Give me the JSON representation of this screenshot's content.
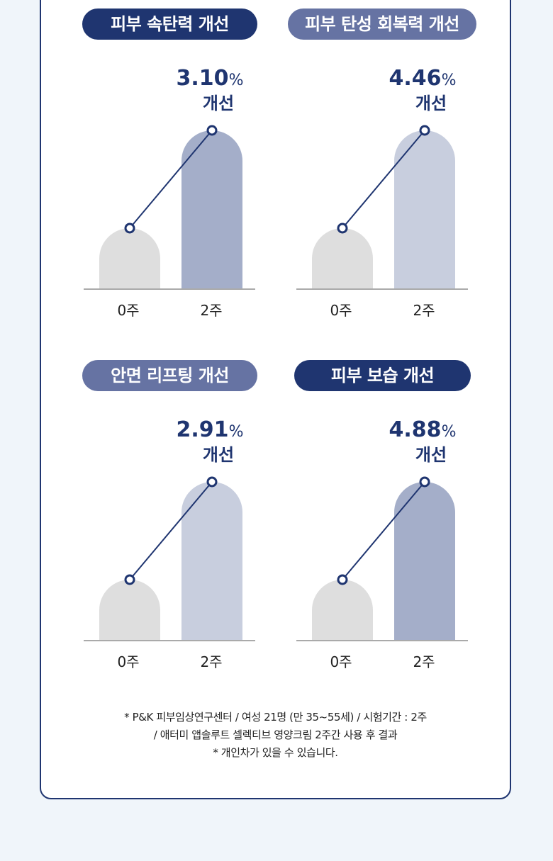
{
  "colors": {
    "page_bg": "#f0f5fa",
    "card_border": "#1f3570",
    "navy": "#1f3570",
    "slate": "#6673a3",
    "bar_base": "#dedede",
    "bar_dark": "#a4aec9",
    "bar_light": "#c8cede",
    "axis": "#aaaaaa"
  },
  "chart_data": [
    {
      "type": "bar",
      "title": "피부 속탄력 개선",
      "title_color": "#1f3570",
      "categories": [
        "0주",
        "2주"
      ],
      "values": [
        1.0,
        3.1
      ],
      "bar_colors": [
        "#dedede",
        "#a4aec9"
      ],
      "annotation": {
        "value": "3.10",
        "unit": "%",
        "text": "개선"
      }
    },
    {
      "type": "bar",
      "title": "피부 탄성 회복력 개선",
      "title_color": "#6673a3",
      "categories": [
        "0주",
        "2주"
      ],
      "values": [
        1.0,
        4.46
      ],
      "bar_colors": [
        "#dedede",
        "#c8cede"
      ],
      "annotation": {
        "value": "4.46",
        "unit": "%",
        "text": "개선"
      }
    },
    {
      "type": "bar",
      "title": "안면 리프팅 개선",
      "title_color": "#6673a3",
      "categories": [
        "0주",
        "2주"
      ],
      "values": [
        1.0,
        2.91
      ],
      "bar_colors": [
        "#dedede",
        "#c8cede"
      ],
      "annotation": {
        "value": "2.91",
        "unit": "%",
        "text": "개선"
      }
    },
    {
      "type": "bar",
      "title": "피부 보습 개선",
      "title_color": "#1f3570",
      "categories": [
        "0주",
        "2주"
      ],
      "values": [
        1.0,
        4.88
      ],
      "bar_colors": [
        "#dedede",
        "#a4aec9"
      ],
      "annotation": {
        "value": "4.88",
        "unit": "%",
        "text": "개선"
      }
    }
  ],
  "footnote": {
    "line1": "* P&K 피부임상연구센터 / 여성 21명 (만 35~55세) / 시험기간 : 2주",
    "line2": "/ 애터미 앱솔루트 셀렉티브 영양크림 2주간 사용 후 결과",
    "line3": "* 개인차가 있을 수 있습니다."
  }
}
